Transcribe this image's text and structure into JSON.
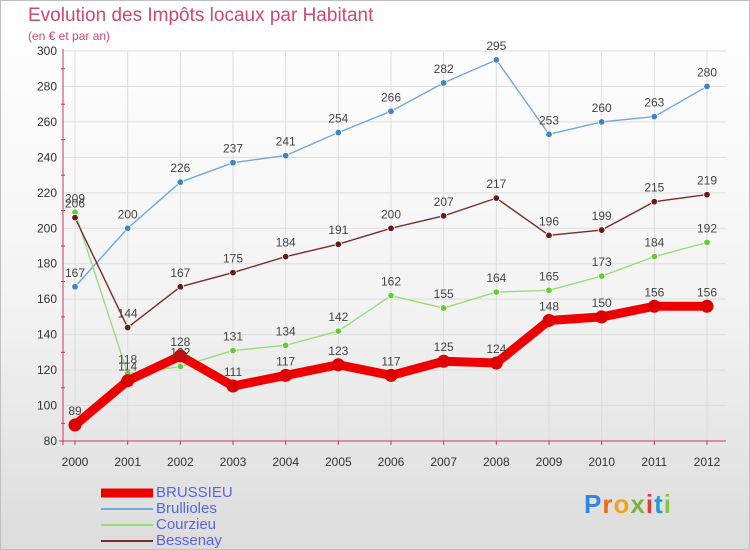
{
  "header": {
    "title": "Evolution des Impôts locaux par Habitant",
    "subtitle": "(en € et par an)"
  },
  "brand": {
    "name": "Proxiti",
    "letter_colors": [
      "#2e86de",
      "#ef6c1a",
      "#f3a21b",
      "#7cb342",
      "#e53935",
      "#1e9ad6",
      "#8bc34a"
    ]
  },
  "colors": {
    "axis": "#cc3366",
    "grid": "#dddddd",
    "tick_text": "#333333",
    "value_text": "#444444"
  },
  "chart_data": {
    "type": "line",
    "title": "Evolution des Impôts locaux par Habitant",
    "subtitle": "(en € et par an)",
    "xlabel": "",
    "ylabel": "",
    "ylim": [
      80,
      300
    ],
    "yticks": [
      80,
      100,
      120,
      140,
      160,
      180,
      200,
      220,
      240,
      260,
      280,
      300
    ],
    "grid": true,
    "legend_position": "bottom-left",
    "categories": [
      "2000",
      "2001",
      "2002",
      "2003",
      "2004",
      "2005",
      "2006",
      "2007",
      "2008",
      "2009",
      "2010",
      "2011",
      "2012"
    ],
    "series": [
      {
        "name": "BRUSSIEU",
        "values": [
          89,
          114,
          128,
          111,
          117,
          123,
          117,
          125,
          124,
          148,
          150,
          156,
          156
        ],
        "color": "#ee0000",
        "marker": "#dd0000",
        "thick": true
      },
      {
        "name": "Brullioles",
        "values": [
          167,
          200,
          226,
          237,
          241,
          254,
          266,
          282,
          295,
          253,
          260,
          263,
          280
        ],
        "color": "#6fa8dc",
        "marker": "#3d85c6",
        "thick": false
      },
      {
        "name": "Courzieu",
        "values": [
          209,
          118,
          122,
          131,
          134,
          142,
          162,
          155,
          164,
          165,
          173,
          184,
          192
        ],
        "color": "#99dd77",
        "marker": "#66cc33",
        "thick": false
      },
      {
        "name": "Bessenay",
        "values": [
          206,
          144,
          167,
          175,
          184,
          191,
          200,
          207,
          217,
          196,
          199,
          215,
          219
        ],
        "color": "#7a2b2b",
        "marker": "#661a1a",
        "thick": false
      }
    ]
  }
}
